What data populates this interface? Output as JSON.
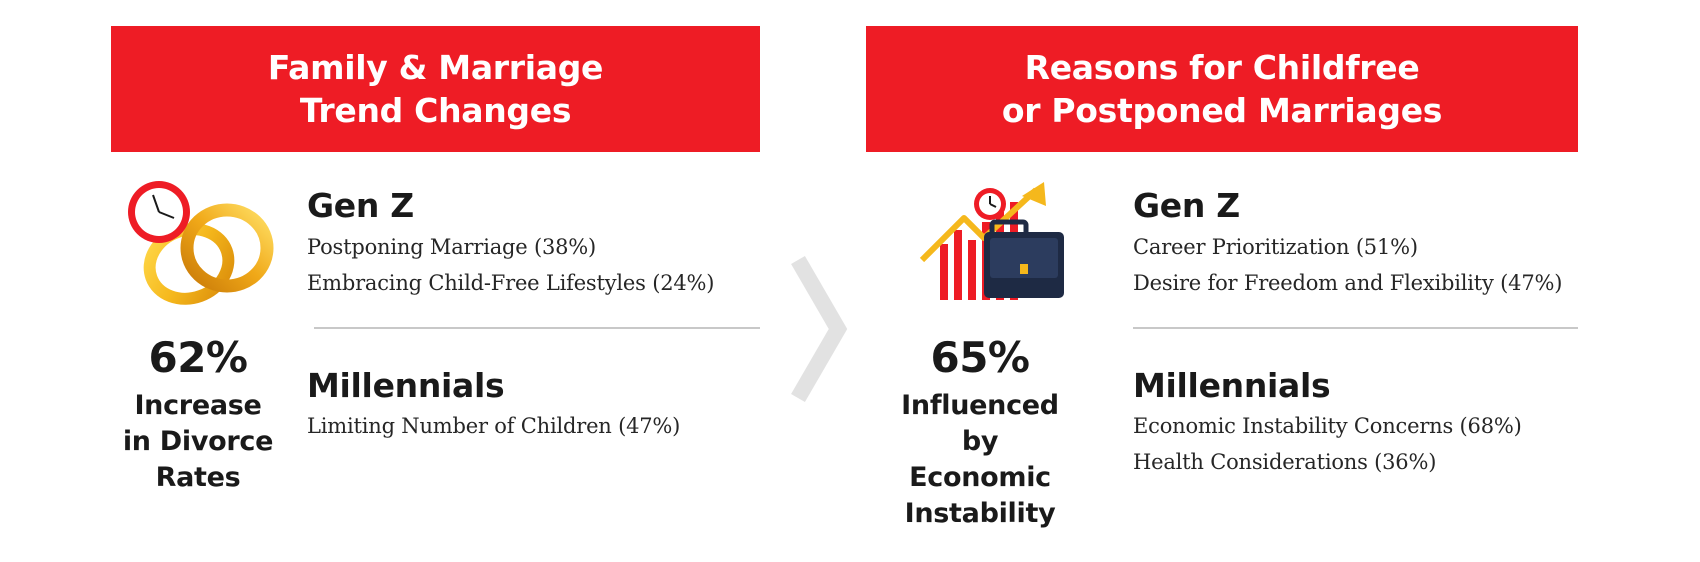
{
  "colors": {
    "accent_red": "#ee1c25",
    "gold": "#f5b81c",
    "dark_text": "#1a1a1a",
    "divider": "#c8c8c8",
    "chevron": "#e2e2e2"
  },
  "left_panel": {
    "banner": {
      "line1": "Family & Marriage",
      "line2": "Trend Changes"
    },
    "icon": "clock-and-wedding-rings-icon",
    "stat": {
      "number": "62%",
      "line1": "Increase",
      "line2": "in Divorce",
      "line3": "Rates"
    },
    "gen_z": {
      "title": "Gen Z",
      "items": [
        "Postponing Marriage (38%)",
        "Embracing Child-Free Lifestyles (24%)"
      ]
    },
    "millennials": {
      "title": "Millennials",
      "items": [
        "Limiting Number of Children (47%)"
      ]
    }
  },
  "separator_icon": "chevron-right-icon",
  "right_panel": {
    "banner": {
      "line1": "Reasons for Childfree",
      "line2": "or Postponed Marriages"
    },
    "icon": "growth-chart-briefcase-icon",
    "stat": {
      "number": "65%",
      "line1": "Influenced",
      "line2": "by Economic",
      "line3": "Instability"
    },
    "gen_z": {
      "title": "Gen Z",
      "items": [
        "Career Prioritization (51%)",
        "Desire for Freedom and Flexibility (47%)"
      ]
    },
    "millennials": {
      "title": "Millennials",
      "items": [
        "Economic Instability Concerns (68%)",
        "Health Considerations (36%)"
      ]
    }
  }
}
